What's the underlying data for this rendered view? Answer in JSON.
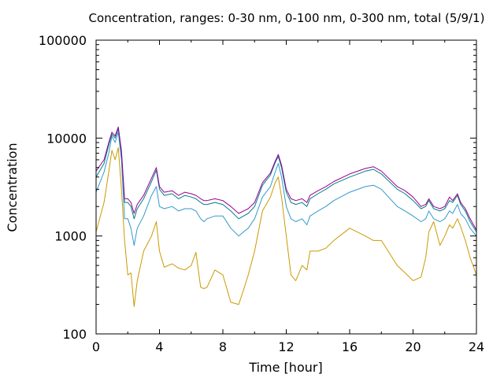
{
  "chart_data": {
    "type": "line",
    "title": "Concentration, ranges: 0-30 nm, 0-100 nm, 0-300 nm, total (5/9/1)",
    "xlabel": "Time [hour]",
    "ylabel": "Concentration",
    "xlim": [
      0,
      24
    ],
    "ylim": [
      100,
      100000
    ],
    "yscale": "log",
    "x_ticks": [
      "0",
      "4",
      "8",
      "12",
      "16",
      "20",
      "24"
    ],
    "x_tick_values": [
      0,
      4,
      8,
      12,
      16,
      20,
      24
    ],
    "y_ticks": [
      "100",
      "1000",
      "10000",
      "100000"
    ],
    "y_tick_values": [
      100,
      1000,
      10000,
      100000
    ],
    "grid": false,
    "legend": "none",
    "x": [
      0,
      0.5,
      0.8,
      1.0,
      1.2,
      1.4,
      1.6,
      1.8,
      2.0,
      2.2,
      2.4,
      2.6,
      3.0,
      3.5,
      3.8,
      4.0,
      4.3,
      4.8,
      5.2,
      5.6,
      6.0,
      6.3,
      6.6,
      6.8,
      7.0,
      7.5,
      8.0,
      8.5,
      9.0,
      9.3,
      9.6,
      10.0,
      10.5,
      11.0,
      11.3,
      11.5,
      11.7,
      12.0,
      12.3,
      12.6,
      13.0,
      13.3,
      13.5,
      14.0,
      14.5,
      15.0,
      16.0,
      17.0,
      17.5,
      18.0,
      19.0,
      19.5,
      20.0,
      20.5,
      20.8,
      21.0,
      21.3,
      21.7,
      22.0,
      22.3,
      22.5,
      22.8,
      23.0,
      23.3,
      23.6,
      24.0
    ],
    "series": [
      {
        "color": "#cc9900",
        "values": [
          1100,
          2200,
          4500,
          7500,
          6000,
          8000,
          3000,
          900,
          400,
          420,
          190,
          350,
          700,
          1000,
          1400,
          700,
          480,
          520,
          470,
          450,
          500,
          680,
          300,
          290,
          300,
          450,
          400,
          210,
          200,
          280,
          400,
          700,
          1800,
          2500,
          3500,
          4000,
          2500,
          1000,
          400,
          350,
          500,
          450,
          700,
          700,
          750,
          900,
          1200,
          1000,
          900,
          900,
          500,
          420,
          350,
          380,
          600,
          1100,
          1400,
          800,
          1000,
          1300,
          1200,
          1500,
          1250,
          900,
          600,
          400
        ]
      },
      {
        "color": "#3399cc",
        "values": [
          2800,
          4500,
          7000,
          10500,
          9000,
          11500,
          6000,
          1500,
          1500,
          1200,
          800,
          1200,
          1600,
          2600,
          3200,
          2000,
          1900,
          2000,
          1800,
          1900,
          1900,
          1800,
          1500,
          1400,
          1500,
          1600,
          1600,
          1200,
          1000,
          1100,
          1200,
          1500,
          2500,
          3200,
          4500,
          5500,
          4000,
          2000,
          1500,
          1400,
          1500,
          1300,
          1600,
          1800,
          2000,
          2300,
          2800,
          3200,
          3300,
          3000,
          2000,
          1800,
          1600,
          1400,
          1500,
          1800,
          1500,
          1400,
          1500,
          1800,
          1700,
          2100,
          1700,
          1500,
          1200,
          1000
        ]
      },
      {
        "color": "#008080",
        "values": [
          4000,
          5500,
          8500,
          11000,
          10000,
          12500,
          7000,
          2200,
          2200,
          2000,
          1500,
          1900,
          2400,
          3600,
          4700,
          3000,
          2600,
          2700,
          2400,
          2600,
          2500,
          2400,
          2200,
          2100,
          2100,
          2200,
          2100,
          1800,
          1500,
          1600,
          1700,
          2000,
          3300,
          4200,
          5600,
          6500,
          5000,
          2800,
          2200,
          2100,
          2200,
          2000,
          2400,
          2700,
          3000,
          3400,
          4000,
          4600,
          4800,
          4300,
          3000,
          2700,
          2300,
          1900,
          2000,
          2300,
          1900,
          1800,
          1900,
          2300,
          2200,
          2600,
          2100,
          1800,
          1400,
          1100
        ]
      },
      {
        "color": "#990099",
        "values": [
          4600,
          6000,
          9000,
          11500,
          10500,
          13000,
          7500,
          2400,
          2400,
          2200,
          1700,
          2100,
          2600,
          3900,
          5000,
          3200,
          2800,
          2900,
          2600,
          2800,
          2700,
          2600,
          2400,
          2300,
          2300,
          2400,
          2300,
          2000,
          1700,
          1800,
          1900,
          2200,
          3500,
          4400,
          5800,
          6800,
          5300,
          3000,
          2400,
          2300,
          2400,
          2200,
          2600,
          2900,
          3200,
          3600,
          4300,
          4900,
          5100,
          4600,
          3200,
          2900,
          2500,
          2000,
          2100,
          2400,
          2000,
          1900,
          2000,
          2500,
          2300,
          2700,
          2200,
          1900,
          1500,
          1150
        ]
      }
    ]
  }
}
